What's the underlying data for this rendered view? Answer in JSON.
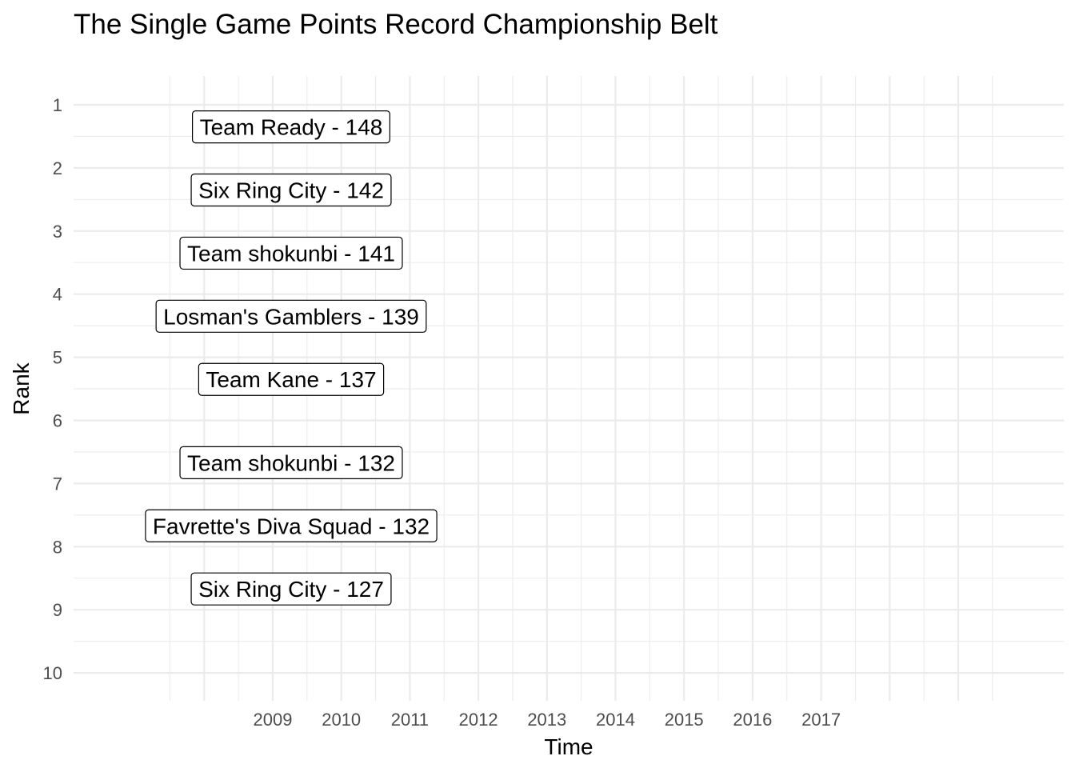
{
  "chart_data": {
    "type": "table",
    "title": "The Single Game Points Record Championship Belt",
    "xlabel": "Time",
    "ylabel": "Rank",
    "x_ticks": [
      "2009",
      "2010",
      "2011",
      "2012",
      "2013",
      "2014",
      "2015",
      "2016",
      "2017"
    ],
    "y_ticks": [
      "1",
      "2",
      "3",
      "4",
      "5",
      "6",
      "7",
      "8",
      "9",
      "10"
    ],
    "y_reversed": true,
    "ylim": [
      1,
      10
    ],
    "grid": true,
    "legend": "none",
    "labels": [
      {
        "text": "Team Ready - 148",
        "rank": 1.35
      },
      {
        "text": "Six Ring City - 142",
        "rank": 2.35
      },
      {
        "text": "Team shokunbi - 141",
        "rank": 3.35
      },
      {
        "text": "Losman's Gamblers - 139",
        "rank": 4.35
      },
      {
        "text": "Team Kane - 137",
        "rank": 5.35
      },
      {
        "text": "Team shokunbi - 132",
        "rank": 6.67
      },
      {
        "text": "Favrette's Diva Squad - 132",
        "rank": 7.67
      },
      {
        "text": "Six Ring City - 127",
        "rank": 8.67
      }
    ]
  }
}
